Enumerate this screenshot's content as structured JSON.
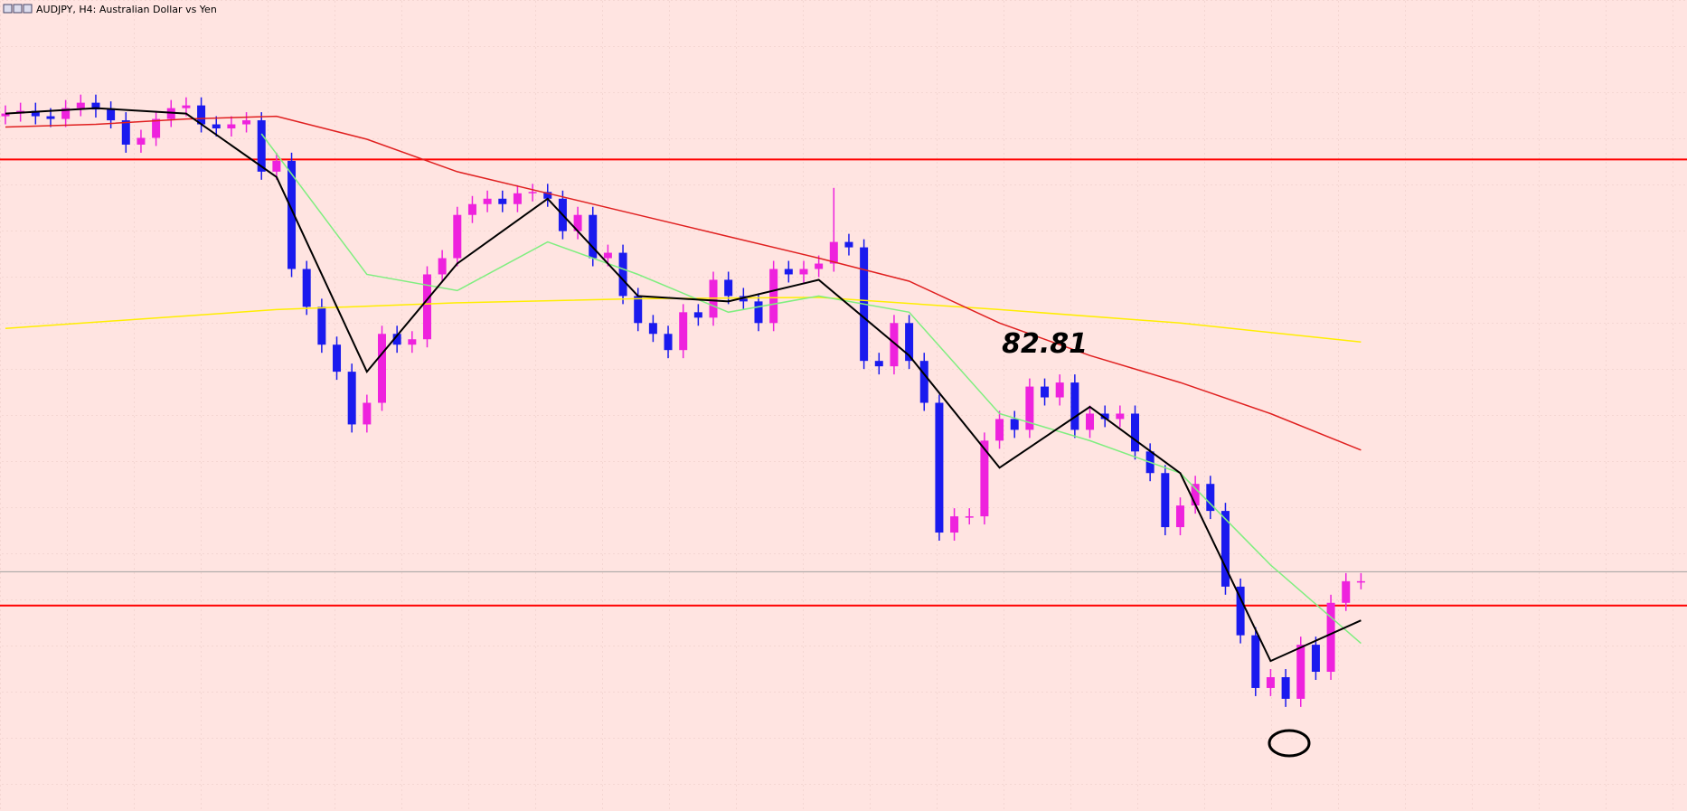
{
  "chart_data": {
    "type": "candlestick",
    "title": "AUDJPY, H4:  Australian Dollar vs Yen",
    "ylim": [
      79.5,
      85.5
    ],
    "bull_color": "#ee22dd",
    "bear_color": "#1a1aee",
    "open": [
      84.64,
      84.66,
      84.68,
      84.64,
      84.62,
      84.7,
      84.74,
      84.69,
      84.61,
      84.43,
      84.48,
      84.62,
      84.7,
      84.72,
      84.58,
      84.55,
      84.58,
      84.61,
      84.23,
      84.31,
      83.51,
      83.23,
      82.95,
      82.75,
      82.36,
      82.52,
      83.03,
      82.95,
      82.99,
      83.47,
      83.59,
      83.91,
      83.99,
      84.03,
      83.99,
      84.07,
      84.08,
      84.03,
      83.79,
      83.91,
      83.59,
      83.63,
      83.31,
      83.11,
      83.03,
      82.91,
      83.19,
      83.15,
      83.43,
      83.31,
      83.27,
      83.11,
      83.51,
      83.47,
      83.51,
      83.55,
      83.71,
      83.67,
      82.83,
      82.79,
      83.11,
      82.83,
      82.52,
      81.56,
      81.68,
      81.68,
      82.24,
      82.4,
      82.32,
      82.64,
      82.56,
      82.67,
      82.32,
      82.44,
      82.4,
      82.44,
      82.16,
      82.0,
      81.6,
      81.76,
      81.92,
      81.72,
      81.16,
      80.8,
      80.41,
      80.49,
      80.33,
      80.73,
      80.53,
      81.04,
      81.2
    ],
    "high": [
      84.72,
      84.74,
      84.74,
      84.7,
      84.76,
      84.8,
      84.8,
      84.75,
      84.67,
      84.54,
      84.68,
      84.76,
      84.78,
      84.78,
      84.64,
      84.64,
      84.67,
      84.67,
      84.37,
      84.37,
      83.57,
      83.29,
      83.01,
      82.81,
      82.58,
      83.09,
      83.09,
      83.05,
      83.53,
      83.65,
      83.97,
      84.05,
      84.09,
      84.09,
      84.13,
      84.14,
      84.14,
      84.09,
      83.97,
      83.97,
      83.69,
      83.69,
      83.37,
      83.17,
      83.09,
      83.25,
      83.25,
      83.49,
      83.49,
      83.37,
      83.33,
      83.57,
      83.57,
      83.57,
      83.61,
      84.11,
      83.77,
      83.73,
      82.89,
      83.17,
      83.17,
      82.89,
      82.58,
      81.74,
      81.74,
      82.3,
      82.46,
      82.46,
      82.7,
      82.7,
      82.73,
      82.73,
      82.5,
      82.5,
      82.5,
      82.5,
      82.22,
      82.06,
      81.82,
      81.98,
      81.98,
      81.78,
      81.22,
      80.86,
      80.55,
      80.55,
      80.79,
      80.79,
      81.1,
      81.26,
      81.26
    ],
    "low": [
      84.58,
      84.6,
      84.58,
      84.56,
      84.56,
      84.64,
      84.63,
      84.55,
      84.37,
      84.37,
      84.42,
      84.56,
      84.64,
      84.52,
      84.49,
      84.49,
      84.52,
      84.17,
      84.17,
      83.45,
      83.17,
      82.89,
      82.69,
      82.3,
      82.3,
      82.46,
      82.89,
      82.89,
      82.93,
      83.41,
      83.53,
      83.85,
      83.93,
      83.93,
      83.93,
      84.01,
      83.97,
      83.73,
      83.73,
      83.53,
      83.53,
      83.25,
      83.05,
      82.97,
      82.85,
      82.85,
      83.09,
      83.09,
      83.25,
      83.21,
      83.05,
      83.05,
      83.41,
      83.41,
      83.45,
      83.49,
      83.61,
      82.77,
      82.73,
      82.73,
      82.77,
      82.46,
      81.5,
      81.5,
      81.62,
      81.62,
      82.18,
      82.26,
      82.26,
      82.5,
      82.5,
      82.26,
      82.26,
      82.34,
      82.34,
      82.1,
      81.94,
      81.54,
      81.54,
      81.7,
      81.66,
      81.1,
      80.74,
      80.35,
      80.35,
      80.27,
      80.27,
      80.47,
      80.47,
      80.98,
      81.14
    ],
    "close": [
      84.66,
      84.68,
      84.64,
      84.62,
      84.7,
      84.74,
      84.69,
      84.61,
      84.43,
      84.48,
      84.62,
      84.7,
      84.72,
      84.58,
      84.55,
      84.58,
      84.61,
      84.23,
      84.31,
      83.51,
      83.23,
      82.95,
      82.75,
      82.36,
      82.52,
      83.03,
      82.95,
      82.99,
      83.47,
      83.59,
      83.91,
      83.99,
      84.03,
      83.99,
      84.07,
      84.08,
      84.03,
      83.79,
      83.91,
      83.59,
      83.63,
      83.31,
      83.11,
      83.03,
      82.91,
      83.19,
      83.15,
      83.43,
      83.31,
      83.27,
      83.11,
      83.51,
      83.47,
      83.51,
      83.55,
      83.71,
      83.67,
      82.83,
      82.79,
      83.11,
      82.83,
      82.52,
      81.56,
      81.68,
      81.68,
      82.24,
      82.4,
      82.32,
      82.64,
      82.56,
      82.67,
      82.32,
      82.44,
      82.4,
      82.44,
      82.16,
      82.0,
      81.6,
      81.76,
      81.92,
      81.72,
      81.16,
      80.8,
      80.41,
      80.49,
      80.33,
      80.73,
      80.53,
      81.04,
      81.2,
      81.2
    ],
    "lines": [
      {
        "color": "#ffee00",
        "x": [
          0,
          18,
          30,
          42,
          54,
          66,
          78,
          90
        ],
        "values": [
          83.07,
          83.21,
          83.26,
          83.29,
          83.3,
          83.21,
          83.11,
          82.97
        ]
      },
      {
        "color": "#e02020",
        "x": [
          0,
          6,
          12,
          18,
          24,
          30,
          36,
          42,
          48,
          54,
          60,
          66,
          72,
          78,
          84,
          90
        ],
        "values": [
          84.56,
          84.58,
          84.62,
          84.64,
          84.47,
          84.23,
          84.07,
          83.91,
          83.75,
          83.59,
          83.42,
          83.11,
          82.87,
          82.67,
          82.44,
          82.17
        ]
      },
      {
        "color": "#80ee80",
        "x": [
          17,
          24,
          30,
          36,
          42,
          48,
          54,
          60,
          66,
          72,
          78,
          84,
          90
        ],
        "values": [
          84.51,
          83.47,
          83.35,
          83.71,
          83.47,
          83.19,
          83.31,
          83.19,
          82.44,
          82.24,
          82.0,
          81.32,
          80.74
        ]
      },
      {
        "color": "#000000",
        "x": [
          0,
          6,
          12,
          18,
          24,
          30,
          36,
          42,
          48,
          54,
          60,
          66,
          72,
          78,
          84,
          90
        ],
        "values": [
          84.66,
          84.7,
          84.66,
          84.19,
          82.75,
          83.55,
          84.03,
          83.31,
          83.27,
          83.43,
          82.87,
          82.04,
          82.49,
          82.0,
          80.61,
          80.91
        ]
      }
    ],
    "hlines": [
      {
        "value": 84.32,
        "color": "#ff0000"
      },
      {
        "value": 81.02,
        "color": "#ff0000"
      },
      {
        "value": 81.27,
        "color": "#a0a0a0"
      }
    ],
    "annotations": [
      {
        "text": "82.81",
        "x": 69,
        "value": 82.81
      }
    ]
  }
}
